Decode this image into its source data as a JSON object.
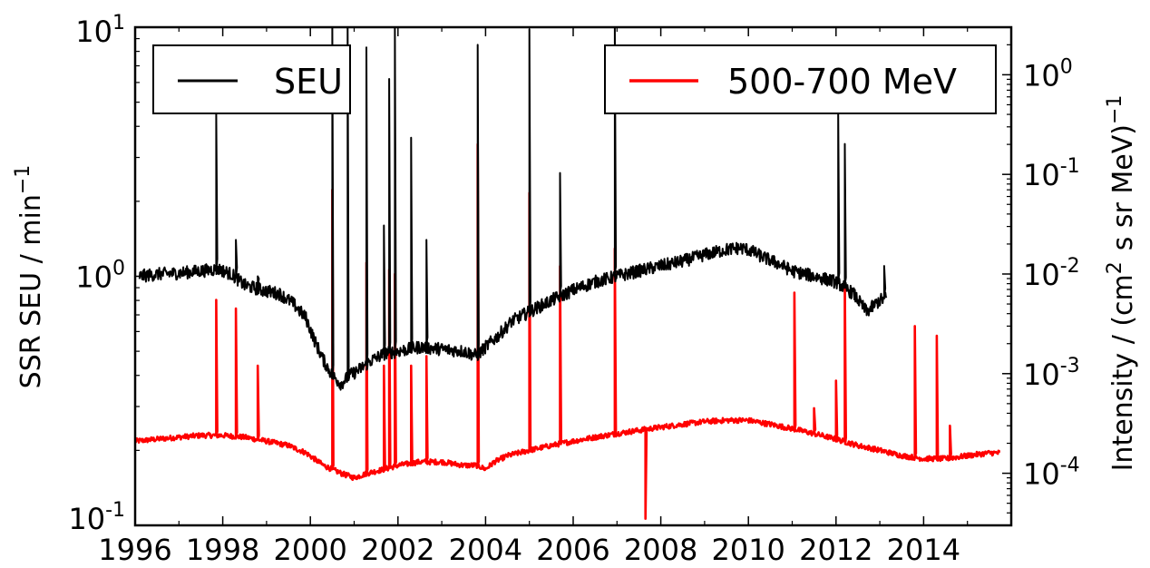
{
  "chart_data": {
    "type": "line",
    "x_axis": {
      "range": [
        1996,
        2016
      ],
      "tick_labels": [
        "1996",
        "1998",
        "2000",
        "2002",
        "2004",
        "2006",
        "2008",
        "2010",
        "2012",
        "2014"
      ]
    },
    "y_axis_left": {
      "label": "SSR SEU / min",
      "label_exponent": "−1",
      "scale": "log",
      "range": [
        0.1,
        10
      ],
      "tick_labels": [
        {
          "base": "10",
          "exp": "-1",
          "value": 0.1
        },
        {
          "base": "10",
          "exp": "0",
          "value": 1
        },
        {
          "base": "10",
          "exp": "1",
          "value": 10
        }
      ]
    },
    "y_axis_right": {
      "label_prefix": "Intensity / (cm",
      "label_exp1": "2",
      "label_mid": "s sr MeV)",
      "label_exp2": "−1",
      "scale": "log",
      "range": [
        3e-05,
        3
      ],
      "tick_labels": [
        {
          "base": "10",
          "exp": "-4",
          "value": 0.0001
        },
        {
          "base": "10",
          "exp": "-3",
          "value": 0.001
        },
        {
          "base": "10",
          "exp": "-2",
          "value": 0.01
        },
        {
          "base": "10",
          "exp": "-1",
          "value": 0.1
        },
        {
          "base": "10",
          "exp": "0",
          "value": 1
        }
      ]
    },
    "series": [
      {
        "name": "SEU",
        "axis": "left",
        "color": "#000000",
        "baseline": [
          [
            1996.1,
            1.0
          ],
          [
            1996.5,
            1.02
          ],
          [
            1997.0,
            1.03
          ],
          [
            1997.5,
            1.05
          ],
          [
            1997.9,
            1.07
          ],
          [
            1998.2,
            1.02
          ],
          [
            1998.5,
            0.92
          ],
          [
            1998.9,
            0.88
          ],
          [
            1999.3,
            0.85
          ],
          [
            1999.6,
            0.78
          ],
          [
            1999.9,
            0.68
          ],
          [
            2000.1,
            0.55
          ],
          [
            2000.3,
            0.46
          ],
          [
            2000.5,
            0.4
          ],
          [
            2000.7,
            0.37
          ],
          [
            2000.9,
            0.4
          ],
          [
            2001.1,
            0.42
          ],
          [
            2001.4,
            0.46
          ],
          [
            2001.7,
            0.49
          ],
          [
            2002.0,
            0.5
          ],
          [
            2002.5,
            0.52
          ],
          [
            2003.0,
            0.51
          ],
          [
            2003.5,
            0.5
          ],
          [
            2003.8,
            0.48
          ],
          [
            2004.0,
            0.52
          ],
          [
            2004.3,
            0.58
          ],
          [
            2004.6,
            0.66
          ],
          [
            2005.0,
            0.72
          ],
          [
            2005.5,
            0.8
          ],
          [
            2006.0,
            0.88
          ],
          [
            2006.5,
            0.95
          ],
          [
            2007.0,
            1.0
          ],
          [
            2007.5,
            1.05
          ],
          [
            2008.0,
            1.1
          ],
          [
            2008.5,
            1.15
          ],
          [
            2009.0,
            1.22
          ],
          [
            2009.5,
            1.28
          ],
          [
            2009.8,
            1.3
          ],
          [
            2010.0,
            1.28
          ],
          [
            2010.3,
            1.2
          ],
          [
            2010.7,
            1.12
          ],
          [
            2011.0,
            1.05
          ],
          [
            2011.5,
            1.0
          ],
          [
            2012.0,
            0.95
          ],
          [
            2012.4,
            0.85
          ],
          [
            2012.7,
            0.72
          ],
          [
            2013.0,
            0.8
          ],
          [
            2013.15,
            0.82
          ]
        ],
        "noise": 0.06,
        "spikes": [
          [
            1997.85,
            4.5
          ],
          [
            1998.3,
            1.4
          ],
          [
            1998.8,
            1.0
          ],
          [
            2000.5,
            10
          ],
          [
            2000.85,
            10
          ],
          [
            2001.28,
            8.3
          ],
          [
            2001.68,
            1.6
          ],
          [
            2001.8,
            6.2
          ],
          [
            2001.93,
            10
          ],
          [
            2002.3,
            3.6
          ],
          [
            2002.65,
            1.4
          ],
          [
            2003.82,
            8.5
          ],
          [
            2005.0,
            9.8
          ],
          [
            2005.7,
            2.6
          ],
          [
            2006.95,
            10
          ],
          [
            2012.05,
            4.5
          ],
          [
            2012.2,
            3.4
          ],
          [
            2013.1,
            1.1
          ]
        ]
      },
      {
        "name": "500-700 MeV",
        "axis": "right",
        "color": "#ff0000",
        "baseline": [
          [
            1996.0,
            0.00021
          ],
          [
            1996.5,
            0.00022
          ],
          [
            1997.0,
            0.00023
          ],
          [
            1997.5,
            0.00024
          ],
          [
            1998.0,
            0.00024
          ],
          [
            1998.5,
            0.00023
          ],
          [
            1999.0,
            0.00021
          ],
          [
            1999.5,
            0.00019
          ],
          [
            1999.9,
            0.00016
          ],
          [
            2000.3,
            0.00012
          ],
          [
            2000.7,
            0.0001
          ],
          [
            2001.0,
            9e-05
          ],
          [
            2001.3,
            0.0001
          ],
          [
            2001.7,
            0.00011
          ],
          [
            2002.0,
            0.00012
          ],
          [
            2002.5,
            0.00013
          ],
          [
            2003.0,
            0.00013
          ],
          [
            2003.5,
            0.00012
          ],
          [
            2003.8,
            0.00012
          ],
          [
            2004.0,
            0.00011
          ],
          [
            2004.2,
            0.00013
          ],
          [
            2004.5,
            0.00015
          ],
          [
            2005.0,
            0.00017
          ],
          [
            2005.5,
            0.00019
          ],
          [
            2006.0,
            0.00021
          ],
          [
            2006.5,
            0.00023
          ],
          [
            2007.0,
            0.00025
          ],
          [
            2007.5,
            0.00027
          ],
          [
            2008.0,
            0.00029
          ],
          [
            2008.5,
            0.00031
          ],
          [
            2009.0,
            0.00033
          ],
          [
            2009.5,
            0.00034
          ],
          [
            2010.0,
            0.00034
          ],
          [
            2010.5,
            0.00031
          ],
          [
            2011.0,
            0.00028
          ],
          [
            2011.5,
            0.00025
          ],
          [
            2012.0,
            0.00022
          ],
          [
            2012.5,
            0.00019
          ],
          [
            2013.0,
            0.00017
          ],
          [
            2013.5,
            0.00015
          ],
          [
            2014.0,
            0.00014
          ],
          [
            2014.5,
            0.00014
          ],
          [
            2015.0,
            0.00015
          ],
          [
            2015.5,
            0.00016
          ],
          [
            2015.75,
            0.00016
          ]
        ],
        "noise": 0.06,
        "spikes": [
          [
            1997.85,
            0.0055
          ],
          [
            1998.3,
            0.0045
          ],
          [
            1998.8,
            0.0012
          ],
          [
            2000.5,
            0.07
          ],
          [
            2001.28,
            0.013
          ],
          [
            2001.68,
            0.0012
          ],
          [
            2001.8,
            0.011
          ],
          [
            2001.93,
            0.01
          ],
          [
            2002.3,
            0.0012
          ],
          [
            2002.65,
            0.0015
          ],
          [
            2003.82,
            0.2
          ],
          [
            2005.0,
            0.065
          ],
          [
            2005.7,
            0.012
          ],
          [
            2006.95,
            0.018
          ],
          [
            2011.05,
            0.0065
          ],
          [
            2011.5,
            0.00045
          ],
          [
            2012.0,
            0.00085
          ],
          [
            2012.2,
            0.0085
          ],
          [
            2013.8,
            0.003
          ],
          [
            2014.3,
            0.0024
          ],
          [
            2014.6,
            0.0003
          ]
        ],
        "dips": [
          [
            2007.65,
            3.5e-05
          ]
        ]
      }
    ],
    "grid": false,
    "legend": [
      {
        "label": "SEU",
        "placement": "top-left"
      },
      {
        "label": "500-700 MeV",
        "placement": "top-right"
      }
    ]
  }
}
